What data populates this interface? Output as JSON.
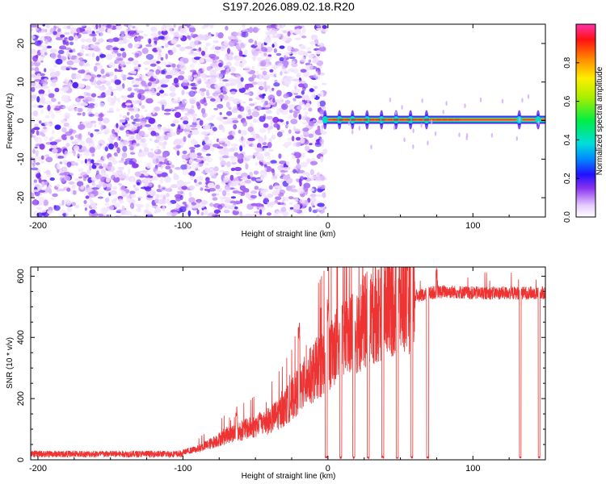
{
  "figure_title": "S197.2026.089.02.18.R20",
  "chart_data": [
    {
      "type": "heatmap",
      "title": "S197.2026.089.02.18.R20",
      "xlabel": "Height of straight line (km)",
      "ylabel": "Frequency (Hz)",
      "xlim": [
        -205,
        150
      ],
      "ylim": [
        -25,
        25
      ],
      "x_ticks": [
        -200,
        -100,
        0,
        100
      ],
      "y_ticks": [
        -20,
        -10,
        0,
        10,
        20
      ],
      "colorbar": {
        "label": "Normalized spectral amplitude",
        "range": [
          0,
          1
        ],
        "ticks": [
          0.0,
          0.2,
          0.4,
          0.6,
          0.8
        ],
        "tick_labels": [
          "0.0",
          "0.2",
          "0.4",
          "0.6",
          "0.8"
        ],
        "colormap_stops": [
          {
            "v": 0.0,
            "color": "#ffffff"
          },
          {
            "v": 0.06,
            "color": "#e6ccff"
          },
          {
            "v": 0.15,
            "color": "#8833ee"
          },
          {
            "v": 0.22,
            "color": "#2211ff"
          },
          {
            "v": 0.3,
            "color": "#0088ff"
          },
          {
            "v": 0.38,
            "color": "#00dddd"
          },
          {
            "v": 0.5,
            "color": "#00ee44"
          },
          {
            "v": 0.62,
            "color": "#aaee00"
          },
          {
            "v": 0.72,
            "color": "#ffee00"
          },
          {
            "v": 0.82,
            "color": "#ff8800"
          },
          {
            "v": 0.92,
            "color": "#ff1111"
          },
          {
            "v": 1.0,
            "color": "#ff33aa"
          }
        ]
      },
      "regions": [
        {
          "name": "noise",
          "x_range": [
            -205,
            -2
          ],
          "freq_range": [
            -25,
            25
          ],
          "amplitude_range": [
            0.03,
            0.2
          ]
        },
        {
          "name": "carrier",
          "x_range": [
            -2,
            150
          ],
          "freq_hz": 0.2,
          "peak_amplitude": 1.0
        },
        {
          "name": "dropouts",
          "x_ranges": [
            [
              130,
              136
            ]
          ]
        }
      ]
    },
    {
      "type": "line",
      "title": "",
      "xlabel": "Height of straight line (km)",
      "ylabel": "SNR (10 * v/v)",
      "xlim": [
        -205,
        150
      ],
      "ylim": [
        0,
        630
      ],
      "x_ticks": [
        -200,
        -100,
        0,
        100
      ],
      "y_ticks": [
        0,
        200,
        400,
        600
      ],
      "series": [
        {
          "name": "SNR",
          "color": "#ee3333",
          "envelope_x": [
            -205,
            -120,
            -100,
            -90,
            -80,
            -70,
            -60,
            -50,
            -40,
            -30,
            -20,
            -10,
            0,
            10,
            20,
            30,
            40,
            50,
            60,
            70,
            80,
            90,
            100,
            110,
            120,
            130,
            140,
            150
          ],
          "envelope_y": [
            15,
            18,
            25,
            35,
            55,
            80,
            95,
            110,
            130,
            165,
            230,
            285,
            340,
            390,
            430,
            470,
            500,
            520,
            535,
            545,
            550,
            548,
            545,
            545,
            545,
            545,
            545,
            545
          ],
          "peaks": [
            {
              "x": -63,
              "y": 160
            },
            {
              "x": -47,
              "y": 150
            },
            {
              "x": -20,
              "y": 450
            },
            {
              "x": 0,
              "y": 530
            },
            {
              "x": 75,
              "y": 630
            }
          ],
          "dropouts_x": [
            -2,
            8,
            17,
            27,
            37,
            47,
            57,
            68,
            132,
            145
          ]
        }
      ]
    }
  ]
}
